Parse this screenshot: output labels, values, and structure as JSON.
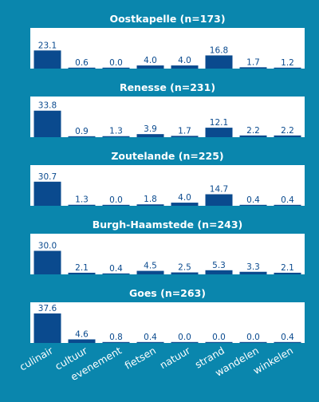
{
  "colors": {
    "background": "#0a86ad",
    "panel": "#ffffff",
    "bar": "#0a4a8e",
    "value_label": "#0a4a8e",
    "title": "#ffffff",
    "axis_text": "#ffffff"
  },
  "chart_data": {
    "type": "bar",
    "categories": [
      "culinair",
      "cultuur",
      "evenement",
      "fietsen",
      "natuur",
      "strand",
      "wandelen",
      "winkelen"
    ],
    "panels": [
      {
        "title": "Oostkapelle (n=173)",
        "values": [
          23.1,
          0.6,
          0.0,
          4.0,
          4.0,
          16.8,
          1.7,
          1.2
        ],
        "labels": [
          "23.1",
          "0.6",
          "0.0",
          "4.0",
          "4.0",
          "16.8",
          "1.7",
          "1.2"
        ]
      },
      {
        "title": "Renesse (n=231)",
        "values": [
          33.8,
          0.9,
          1.3,
          3.9,
          1.7,
          12.1,
          2.2,
          2.2
        ],
        "labels": [
          "33.8",
          "0.9",
          "1.3",
          "3.9",
          "1.7",
          "12.1",
          "2.2",
          "2.2"
        ]
      },
      {
        "title": "Zoutelande (n=225)",
        "values": [
          30.7,
          1.3,
          0.0,
          1.8,
          4.0,
          14.7,
          0.4,
          0.4
        ],
        "labels": [
          "30.7",
          "1.3",
          "0.0",
          "1.8",
          "4.0",
          "14.7",
          "0.4",
          "0.4"
        ]
      },
      {
        "title": "Burgh-Haamstede (n=243)",
        "values": [
          30.0,
          2.1,
          0.4,
          4.5,
          2.5,
          5.3,
          3.3,
          2.1
        ],
        "labels": [
          "30.0",
          "2.1",
          "0.4",
          "4.5",
          "2.5",
          "5.3",
          "3.3",
          "2.1"
        ]
      },
      {
        "title": "Goes (n=263)",
        "values": [
          37.6,
          4.6,
          0.8,
          0.4,
          0.0,
          0.0,
          0.0,
          0.4
        ],
        "labels": [
          "37.6",
          "4.6",
          "0.8",
          "0.4",
          "0.0",
          "0.0",
          "0.0",
          "0.4"
        ]
      }
    ],
    "shared_x_axis": true,
    "yaxis_visible": false,
    "grid": false
  }
}
